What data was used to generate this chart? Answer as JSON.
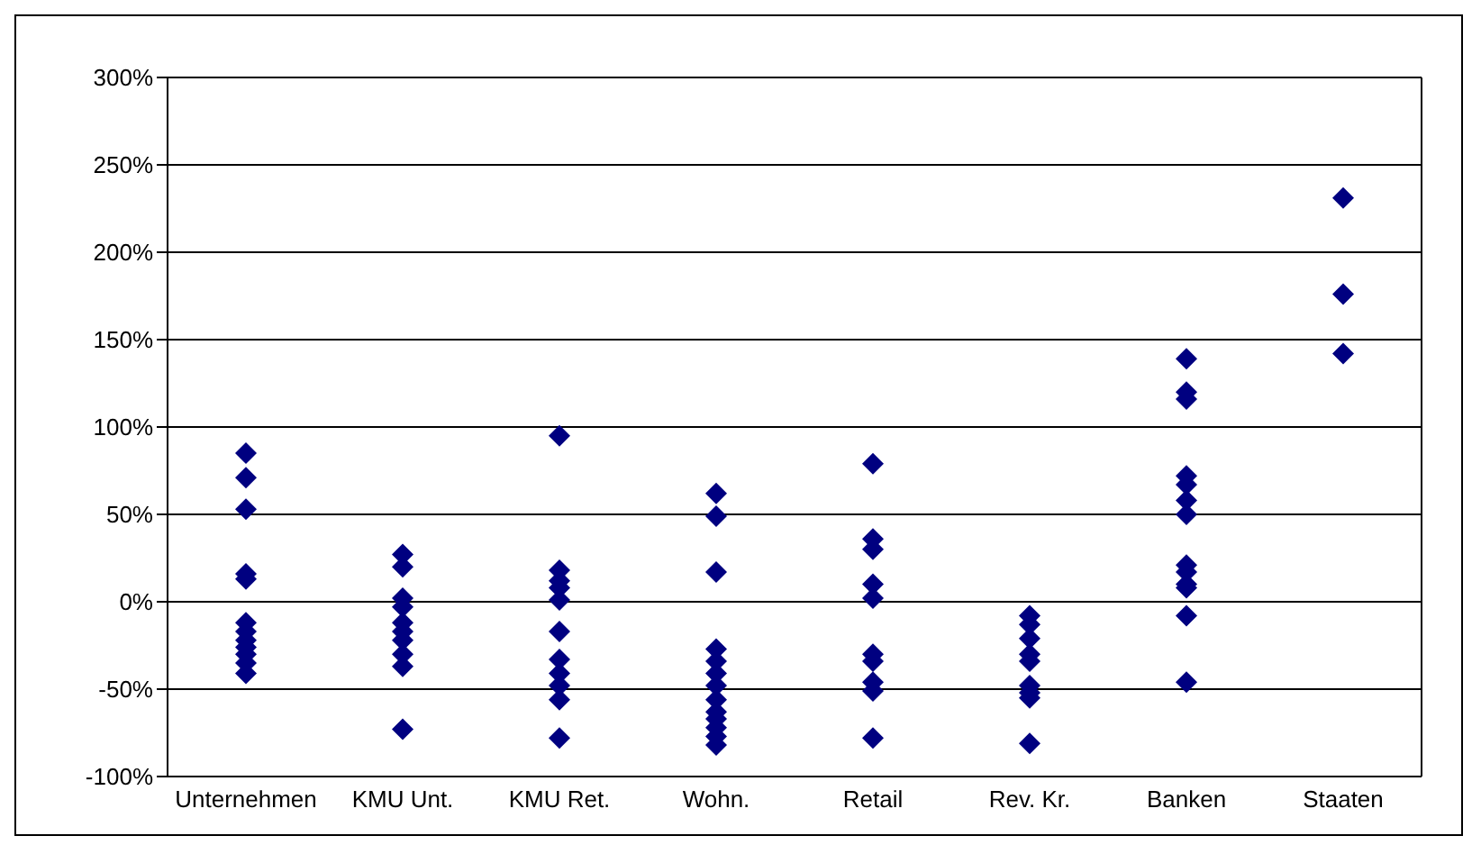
{
  "chart_data": {
    "type": "scatter",
    "categories": [
      "Unternehmen",
      "KMU Unt.",
      "KMU Ret.",
      "Wohn.",
      "Retail",
      "Rev. Kr.",
      "Banken",
      "Staaten"
    ],
    "series": [
      {
        "color": "#000080",
        "marker": "diamond",
        "x": [
          "Unternehmen",
          "Unternehmen",
          "Unternehmen",
          "Unternehmen",
          "Unternehmen",
          "Unternehmen",
          "Unternehmen",
          "Unternehmen",
          "Unternehmen",
          "Unternehmen",
          "Unternehmen",
          "Unternehmen",
          "KMU Unt.",
          "KMU Unt.",
          "KMU Unt.",
          "KMU Unt.",
          "KMU Unt.",
          "KMU Unt.",
          "KMU Unt.",
          "KMU Unt.",
          "KMU Unt.",
          "KMU Unt.",
          "KMU Ret.",
          "KMU Ret.",
          "KMU Ret.",
          "KMU Ret.",
          "KMU Ret.",
          "KMU Ret.",
          "KMU Ret.",
          "KMU Ret.",
          "KMU Ret.",
          "KMU Ret.",
          "KMU Ret.",
          "Wohn.",
          "Wohn.",
          "Wohn.",
          "Wohn.",
          "Wohn.",
          "Wohn.",
          "Wohn.",
          "Wohn.",
          "Wohn.",
          "Wohn.",
          "Wohn.",
          "Wohn.",
          "Wohn.",
          "Retail",
          "Retail",
          "Retail",
          "Retail",
          "Retail",
          "Retail",
          "Retail",
          "Retail",
          "Retail",
          "Retail",
          "Rev. Kr.",
          "Rev. Kr.",
          "Rev. Kr.",
          "Rev. Kr.",
          "Rev. Kr.",
          "Rev. Kr.",
          "Rev. Kr.",
          "Rev. Kr.",
          "Rev. Kr.",
          "Banken",
          "Banken",
          "Banken",
          "Banken",
          "Banken",
          "Banken",
          "Banken",
          "Banken",
          "Banken",
          "Banken",
          "Banken",
          "Banken",
          "Banken",
          "Staaten",
          "Staaten",
          "Staaten"
        ],
        "values": [
          85,
          71,
          53,
          16,
          13,
          -12,
          -17,
          -22,
          -26,
          -30,
          -35,
          -41,
          27,
          20,
          2,
          -3,
          -12,
          -17,
          -22,
          -30,
          -37,
          -73,
          95,
          18,
          12,
          8,
          1,
          -17,
          -33,
          -41,
          -48,
          -56,
          -78,
          62,
          49,
          17,
          -27,
          -34,
          -41,
          -48,
          -56,
          -63,
          -67,
          -72,
          -77,
          -82,
          79,
          36,
          30,
          10,
          2,
          -30,
          -34,
          -46,
          -51,
          -78,
          -8,
          -13,
          -21,
          -30,
          -34,
          -48,
          -52,
          -55,
          -81,
          139,
          120,
          116,
          72,
          67,
          58,
          50,
          21,
          17,
          10,
          8,
          -8,
          -46,
          231,
          176,
          142
        ]
      }
    ],
    "ylim": [
      -100,
      300
    ],
    "yticks": [
      {
        "value": -100,
        "label": "-100%"
      },
      {
        "value": -50,
        "label": "-50%"
      },
      {
        "value": 0,
        "label": "0%"
      },
      {
        "value": 50,
        "label": "50%"
      },
      {
        "value": 100,
        "label": "100%"
      },
      {
        "value": 150,
        "label": "150%"
      },
      {
        "value": 200,
        "label": "200%"
      },
      {
        "value": 250,
        "label": "250%"
      },
      {
        "value": 300,
        "label": "300%"
      }
    ],
    "grid": "y"
  }
}
